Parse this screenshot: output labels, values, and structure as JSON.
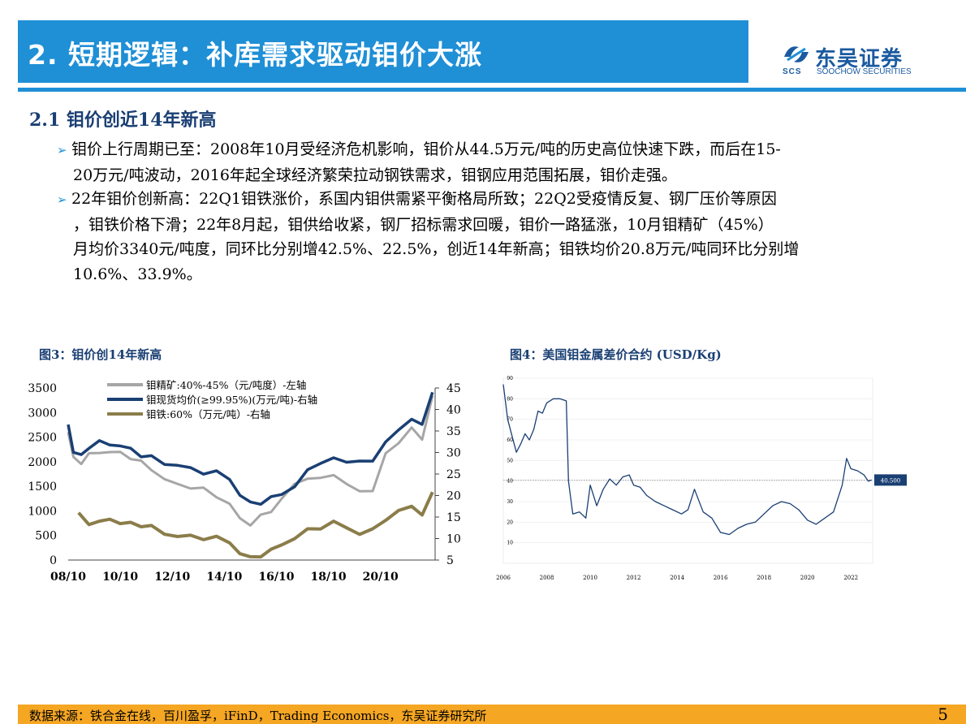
{
  "header": {
    "title": "2. 短期逻辑：补库需求驱动钼价大涨",
    "logo_cn": "东吴证券",
    "logo_en": "SOOCHOW SECURITIES",
    "logo_abbr": "SCS"
  },
  "section": {
    "heading": "2.1 钼价创近14年新高",
    "bullets": [
      {
        "lines": [
          "钼价上行周期已至：2008年10月受经济危机影响，钼价从44.5万元/吨的历史高位快速下跌，而后在15-",
          "20万元/吨波动，2016年起全球经济繁荣拉动钢铁需求，钼钢应用范围拓展，钼价走强。"
        ]
      },
      {
        "lines": [
          "22年钼价创新高：22Q1钼铁涨价，系国内钼供需紧平衡格局所致；22Q2受疫情反复、钢厂压价等原因",
          "，钼铁价格下滑；22年8月起，钼供给收紧，钢厂招标需求回暖，钼价一路猛涨，10月钼精矿（45%）",
          "月均价3340元/吨度，同环比分别增42.5%、22.5%，创近14年新高；钼铁均价20.8万元/吨同环比分别增",
          "10.6%、33.9%。"
        ]
      }
    ]
  },
  "figures": {
    "fig3_caption": "图3：钼价创14年新高",
    "fig4_caption": "图4：美国钼金属差价合约 (USD/Kg)"
  },
  "chart_data": [
    {
      "type": "line",
      "x_ticks": [
        "08/10",
        "10/10",
        "12/10",
        "14/10",
        "16/10",
        "18/10",
        "20/10"
      ],
      "y_left_ticks": [
        "0",
        "500",
        "1000",
        "1500",
        "2000",
        "2500",
        "3000",
        "3500"
      ],
      "y_right_ticks": [
        "5",
        "10",
        "15",
        "20",
        "25",
        "30",
        "35",
        "40",
        "45"
      ],
      "ylim_left": [
        0,
        3500
      ],
      "ylim_right": [
        5,
        45
      ],
      "legend": "top-center",
      "series": [
        {
          "name": "钼精矿:40%-45%（元/吨度）-左轴",
          "axis": "left",
          "color": "#a6a6a6",
          "x": [
            2008.8,
            2009.0,
            2009.3,
            2009.6,
            2010.0,
            2010.4,
            2010.8,
            2011.2,
            2011.6,
            2012.0,
            2012.5,
            2013.0,
            2013.5,
            2014.0,
            2014.5,
            2015.0,
            2015.4,
            2015.8,
            2016.2,
            2016.6,
            2017.0,
            2017.5,
            2018.0,
            2018.5,
            2019.0,
            2019.5,
            2020.0,
            2020.5,
            2021.0,
            2021.5,
            2022.0,
            2022.4,
            2022.8
          ],
          "y": [
            2600,
            2100,
            2000,
            2150,
            2200,
            2150,
            2200,
            2100,
            2000,
            1850,
            1600,
            1550,
            1500,
            1450,
            1300,
            1100,
            850,
            750,
            900,
            1000,
            1200,
            1550,
            1700,
            1650,
            1750,
            1500,
            1400,
            1450,
            2150,
            2400,
            2650,
            2450,
            3340
          ]
        },
        {
          "name": "钼现货均价(≥99.95%)(万元/吨)-右轴",
          "axis": "right",
          "color": "#1a3f73",
          "x": [
            2008.8,
            2009.0,
            2009.3,
            2009.6,
            2010.0,
            2010.4,
            2010.8,
            2011.2,
            2011.6,
            2012.0,
            2012.5,
            2013.0,
            2013.5,
            2014.0,
            2014.5,
            2015.0,
            2015.4,
            2015.8,
            2016.2,
            2016.6,
            2017.0,
            2017.5,
            2018.0,
            2018.5,
            2019.0,
            2019.5,
            2020.0,
            2020.5,
            2021.0,
            2021.5,
            2022.0,
            2022.4,
            2022.8
          ],
          "y": [
            36.5,
            29.5,
            29.5,
            31.5,
            32.5,
            32.0,
            31.0,
            31.0,
            29.5,
            29.0,
            27.5,
            26.5,
            26.5,
            25.5,
            25.5,
            24.0,
            19.5,
            18.5,
            18.5,
            19.5,
            20.5,
            21.5,
            26.0,
            28.0,
            28.5,
            28.0,
            27.5,
            28.0,
            33.0,
            35.0,
            38.0,
            36.0,
            44.0
          ]
        },
        {
          "name": "钼铁:60%（万元/吨）-右轴",
          "axis": "right",
          "color": "#8b7d4a",
          "x": [
            2009.2,
            2009.6,
            2010.0,
            2010.4,
            2010.8,
            2011.2,
            2011.6,
            2012.0,
            2012.5,
            2013.0,
            2013.5,
            2014.0,
            2014.5,
            2015.0,
            2015.4,
            2015.8,
            2016.2,
            2016.6,
            2017.0,
            2017.5,
            2018.0,
            2018.5,
            2019.0,
            2019.5,
            2020.0,
            2020.5,
            2021.0,
            2021.5,
            2022.0,
            2022.4,
            2022.8
          ],
          "y": [
            16.0,
            13.5,
            13.5,
            14.5,
            14.0,
            13.5,
            13.0,
            12.5,
            11.0,
            11.0,
            10.5,
            10.0,
            10.0,
            9.0,
            7.0,
            5.5,
            6.0,
            7.0,
            8.5,
            10.5,
            12.0,
            12.5,
            13.5,
            12.5,
            11.5,
            12.0,
            14.5,
            16.0,
            17.5,
            16.0,
            20.8
          ]
        }
      ]
    },
    {
      "type": "line",
      "x_ticks": [
        "2006",
        "2008",
        "2010",
        "2012",
        "2014",
        "2016",
        "2018",
        "2020",
        "2022"
      ],
      "y_ticks": [
        "10",
        "20",
        "30",
        "40",
        "50",
        "60",
        "70",
        "80",
        "90"
      ],
      "ylim": [
        0,
        90
      ],
      "xlim": [
        2006,
        2023
      ],
      "reference_line": 40.5,
      "value_label": "40.500",
      "series": [
        {
          "color": "#1a3f73",
          "x": [
            2006.0,
            2006.2,
            2006.4,
            2006.6,
            2006.8,
            2007.0,
            2007.2,
            2007.4,
            2007.6,
            2007.8,
            2008.0,
            2008.3,
            2008.6,
            2008.9,
            2009.0,
            2009.2,
            2009.5,
            2009.8,
            2010.0,
            2010.3,
            2010.6,
            2010.9,
            2011.2,
            2011.5,
            2011.8,
            2012.0,
            2012.3,
            2012.6,
            2013.0,
            2013.4,
            2013.8,
            2014.2,
            2014.5,
            2014.8,
            2015.2,
            2015.6,
            2016.0,
            2016.4,
            2016.8,
            2017.2,
            2017.6,
            2018.0,
            2018.4,
            2018.8,
            2019.2,
            2019.6,
            2020.0,
            2020.4,
            2020.8,
            2021.2,
            2021.6,
            2021.8,
            2022.0,
            2022.3,
            2022.6,
            2022.8,
            2022.95
          ],
          "y": [
            87,
            70,
            62,
            54,
            58,
            63,
            60,
            65,
            74,
            73,
            78,
            80,
            80,
            79,
            40,
            24,
            25,
            22,
            38,
            28,
            36,
            41,
            38,
            42,
            43,
            38,
            37,
            33,
            30,
            28,
            26,
            24,
            26,
            36,
            25,
            22,
            15,
            14,
            17,
            19,
            20,
            24,
            28,
            30,
            29,
            26,
            21,
            19,
            22,
            25,
            38,
            51,
            46,
            45,
            43,
            40,
            40.5
          ]
        }
      ]
    }
  ],
  "footer": {
    "source": "数据来源：铁合金在线，百川盈孚，iFinD，Trading Economics，东吴证券研究所",
    "page_number": "5"
  },
  "colors": {
    "brand_blue": "#1f8fd6",
    "navy": "#1a3f73",
    "footer_orange": "#f5a623"
  }
}
